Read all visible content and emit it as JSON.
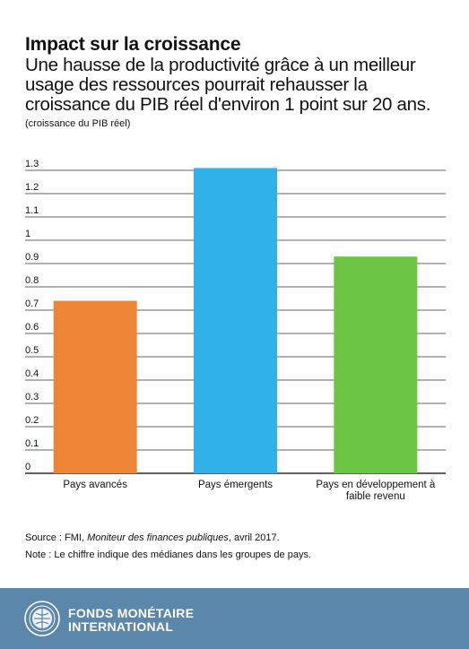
{
  "header": {
    "title": "Impact sur la croissance",
    "subtitle": "Une hausse de la productivité grâce à un meilleur usage des ressources pourrait rehausser la croissance du PIB réel d'environ 1 point sur 20 ans.",
    "unit": "(croissance du PIB réel)"
  },
  "chart_data": {
    "type": "bar",
    "categories": [
      "Pays avancés",
      "Pays émergents",
      "Pays en développement à faible revenu"
    ],
    "category_lines": [
      [
        "Pays avancés"
      ],
      [
        "Pays émergents"
      ],
      [
        "Pays en développement à",
        "faible revenu"
      ]
    ],
    "values": [
      0.74,
      1.31,
      0.93
    ],
    "colors": [
      "#ee8536",
      "#30b2e8",
      "#6cc644"
    ],
    "ylim": [
      0,
      1.3
    ],
    "yticks": [
      0,
      0.1,
      0.2,
      0.3,
      0.4,
      0.5,
      0.6,
      0.7,
      0.8,
      0.9,
      1,
      1.1,
      1.2,
      1.3
    ],
    "ytick_labels": [
      "0",
      "0.1",
      "0.2",
      "0.3",
      "0.4",
      "0.5",
      "0.6",
      "0.7",
      "0.8",
      "0.9",
      "1",
      "1.1",
      "1.2",
      "1.3"
    ],
    "grid": true
  },
  "footer": {
    "source_prefix": "Source : FMI, ",
    "source_italic": "Moniteur des finances publiques",
    "source_suffix": ", avril 2017.",
    "note": "Note : Le chiffre indique des médianes dans les groupes de pays.",
    "brand_line1": "FONDS MONÉTAIRE",
    "brand_line2": "INTERNATIONAL",
    "logo_icon": "imf-seal-icon",
    "background": "#5b87aa"
  }
}
